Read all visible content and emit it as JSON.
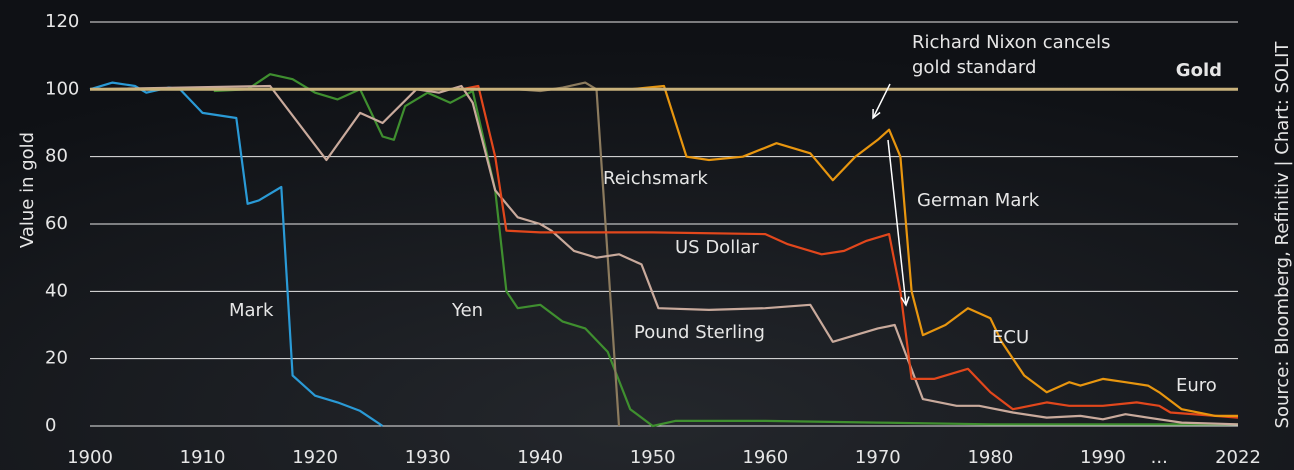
{
  "chart_data": {
    "type": "line",
    "y_label": "Value in gold",
    "source": "Source: Bloomberg, Refinitiv | Chart: SOLIT",
    "xlim": [
      1900,
      2022
    ],
    "x_break": [
      1995,
      2015
    ],
    "xticks": [
      1900,
      1910,
      1920,
      1930,
      1940,
      1950,
      1960,
      1970,
      1980,
      1990,
      {
        "value": 1995,
        "label": "..."
      },
      2022
    ],
    "ylim": [
      0,
      120
    ],
    "yticks": [
      0,
      20,
      40,
      60,
      80,
      100,
      120
    ],
    "grid": true,
    "series": [
      {
        "name": "Gold",
        "color": "#c9b27c",
        "x": [
          1900,
          2022
        ],
        "values": [
          100,
          100
        ]
      },
      {
        "name": "Mark",
        "color": "#2a9ad6",
        "x": [
          1900,
          1902,
          1904,
          1905,
          1907,
          1908,
          1910,
          1913,
          1914,
          1915,
          1917,
          1918,
          1920,
          1922,
          1924,
          1926
        ],
        "values": [
          100,
          102,
          101,
          99,
          100.5,
          100,
          93,
          91.5,
          66,
          67,
          71,
          15,
          9,
          7,
          4.5,
          0
        ]
      },
      {
        "name": "Yen",
        "color": "#3f8f2f",
        "x": [
          1911,
          1914,
          1916,
          1918,
          1920,
          1922,
          1924,
          1926,
          1927,
          1928,
          1930,
          1932,
          1934,
          1936,
          1937,
          1938,
          1940,
          1942,
          1944,
          1946,
          1948,
          1950,
          1952,
          1960,
          1970,
          1980,
          1990,
          2022
        ],
        "values": [
          99.5,
          100,
          104.5,
          103,
          99,
          97,
          100,
          86,
          85,
          95,
          99,
          96,
          99.5,
          70,
          40,
          35,
          36,
          31,
          29,
          22,
          5,
          0,
          1.5,
          1.5,
          1,
          0.5,
          0.5,
          0.5
        ]
      },
      {
        "name": "Reichsmark",
        "color": "#8c7b5e",
        "x": [
          1924,
          1935,
          1938,
          1940,
          1942,
          1944,
          1945,
          1947
        ],
        "values": [
          100,
          100,
          100,
          99.5,
          100.5,
          102,
          100,
          0
        ]
      },
      {
        "name": "Pound Sterling",
        "color": "#c9aa9c",
        "x": [
          1900,
          1916,
          1921,
          1924,
          1926,
          1929,
          1931,
          1933,
          1934,
          1936,
          1938,
          1940,
          1941,
          1943,
          1945,
          1947,
          1949,
          1950.5,
          1955,
          1960,
          1964,
          1966,
          1970,
          1971.5,
          1974,
          1977,
          1979,
          1982,
          1985,
          1988,
          1990,
          1992,
          1995,
          2017,
          2022
        ],
        "values": [
          100,
          101,
          79,
          93,
          90,
          100,
          99,
          101,
          96,
          70,
          62,
          60,
          58,
          52,
          50,
          51,
          48,
          35,
          34.5,
          35,
          36,
          25,
          29,
          30,
          8,
          6,
          6,
          4,
          2.5,
          3,
          2,
          3.5,
          2,
          1,
          0.5
        ]
      },
      {
        "name": "US Dollar",
        "color": "#e2471c",
        "x": [
          1933,
          1934.5,
          1936,
          1937,
          1940,
          1950,
          1960,
          1962,
          1965,
          1967,
          1969,
          1971,
          1972,
          1973,
          1975,
          1978,
          1980,
          1982,
          1985,
          1987,
          1990,
          1993,
          1995,
          2016,
          2020,
          2022
        ],
        "values": [
          100,
          101,
          80,
          58,
          57.5,
          57.5,
          57,
          54,
          51,
          52,
          55,
          57,
          40,
          14,
          14,
          17,
          10,
          5,
          7,
          6,
          6,
          7,
          6,
          4,
          3,
          2.5
        ]
      },
      {
        "name": "German Mark",
        "color": "#e8960f",
        "x": [
          1948,
          1951,
          1953,
          1955,
          1958,
          1961,
          1964,
          1966,
          1968,
          1970,
          1971,
          1972,
          1973,
          1974,
          1976,
          1978,
          1980,
          1981,
          1983,
          1985,
          1987,
          1988,
          1990,
          1992,
          1994,
          1995,
          2017,
          2020,
          2022
        ],
        "values": [
          100,
          101,
          80,
          79,
          80,
          84,
          81,
          73,
          80,
          85,
          88,
          80,
          40,
          27,
          30,
          35,
          32,
          25,
          15,
          10,
          13,
          12,
          14,
          13,
          12,
          10,
          5,
          3,
          3
        ]
      }
    ],
    "annotations": [
      {
        "text": [
          "Richard Nixon cancels",
          "gold standard"
        ],
        "color": "#ffffff"
      },
      {
        "text": "ECU",
        "color": "#e8960f"
      },
      {
        "text": "Euro",
        "color": "#e8960f"
      }
    ]
  }
}
